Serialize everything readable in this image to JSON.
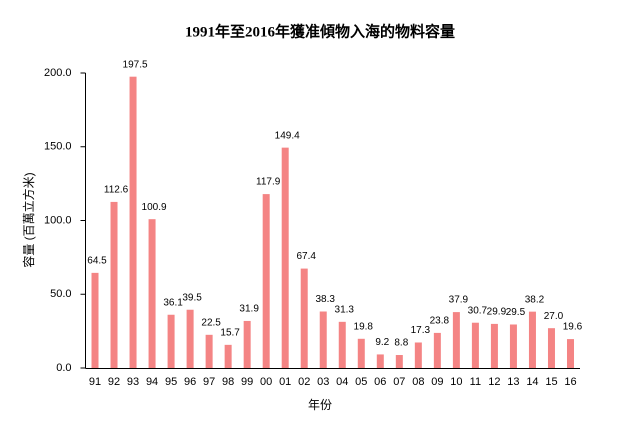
{
  "chart_data": {
    "type": "bar",
    "title": "1991年至2016年獲准傾物入海的物料容量",
    "x_label": "年份",
    "y_label": "容量 (百萬立方米)",
    "categories": [
      "91",
      "92",
      "93",
      "94",
      "95",
      "96",
      "97",
      "98",
      "99",
      "00",
      "01",
      "02",
      "03",
      "04",
      "05",
      "06",
      "07",
      "08",
      "09",
      "10",
      "11",
      "12",
      "13",
      "14",
      "15",
      "16"
    ],
    "values": [
      64.5,
      112.6,
      197.5,
      100.9,
      36.1,
      39.5,
      22.5,
      15.7,
      31.9,
      117.9,
      149.4,
      67.4,
      38.3,
      31.3,
      19.8,
      9.2,
      8.8,
      17.3,
      23.8,
      37.9,
      30.7,
      29.9,
      29.5,
      38.2,
      27.0,
      19.6
    ],
    "value_labels": [
      "64.5",
      "112.6",
      "197.5",
      "100.9",
      "36.1",
      "39.5",
      "22.5",
      "15.7",
      "31.9",
      "117.9",
      "149.4",
      "67.4",
      "38.3",
      "31.3",
      "19.8",
      "9.2",
      "8.8",
      "17.3",
      "23.8",
      "37.9",
      "30.7",
      "29.9",
      "29.5",
      "38.2",
      "27.0",
      "19.6"
    ],
    "color": "#f48484",
    "ylim": [
      0,
      200
    ],
    "yticks": [
      {
        "value": 0,
        "label": "0.0"
      },
      {
        "value": 50,
        "label": "50.0"
      },
      {
        "value": 100,
        "label": "100.0"
      },
      {
        "value": 150,
        "label": "150.0"
      },
      {
        "value": 200,
        "label": "200.0"
      }
    ],
    "grid": false
  }
}
